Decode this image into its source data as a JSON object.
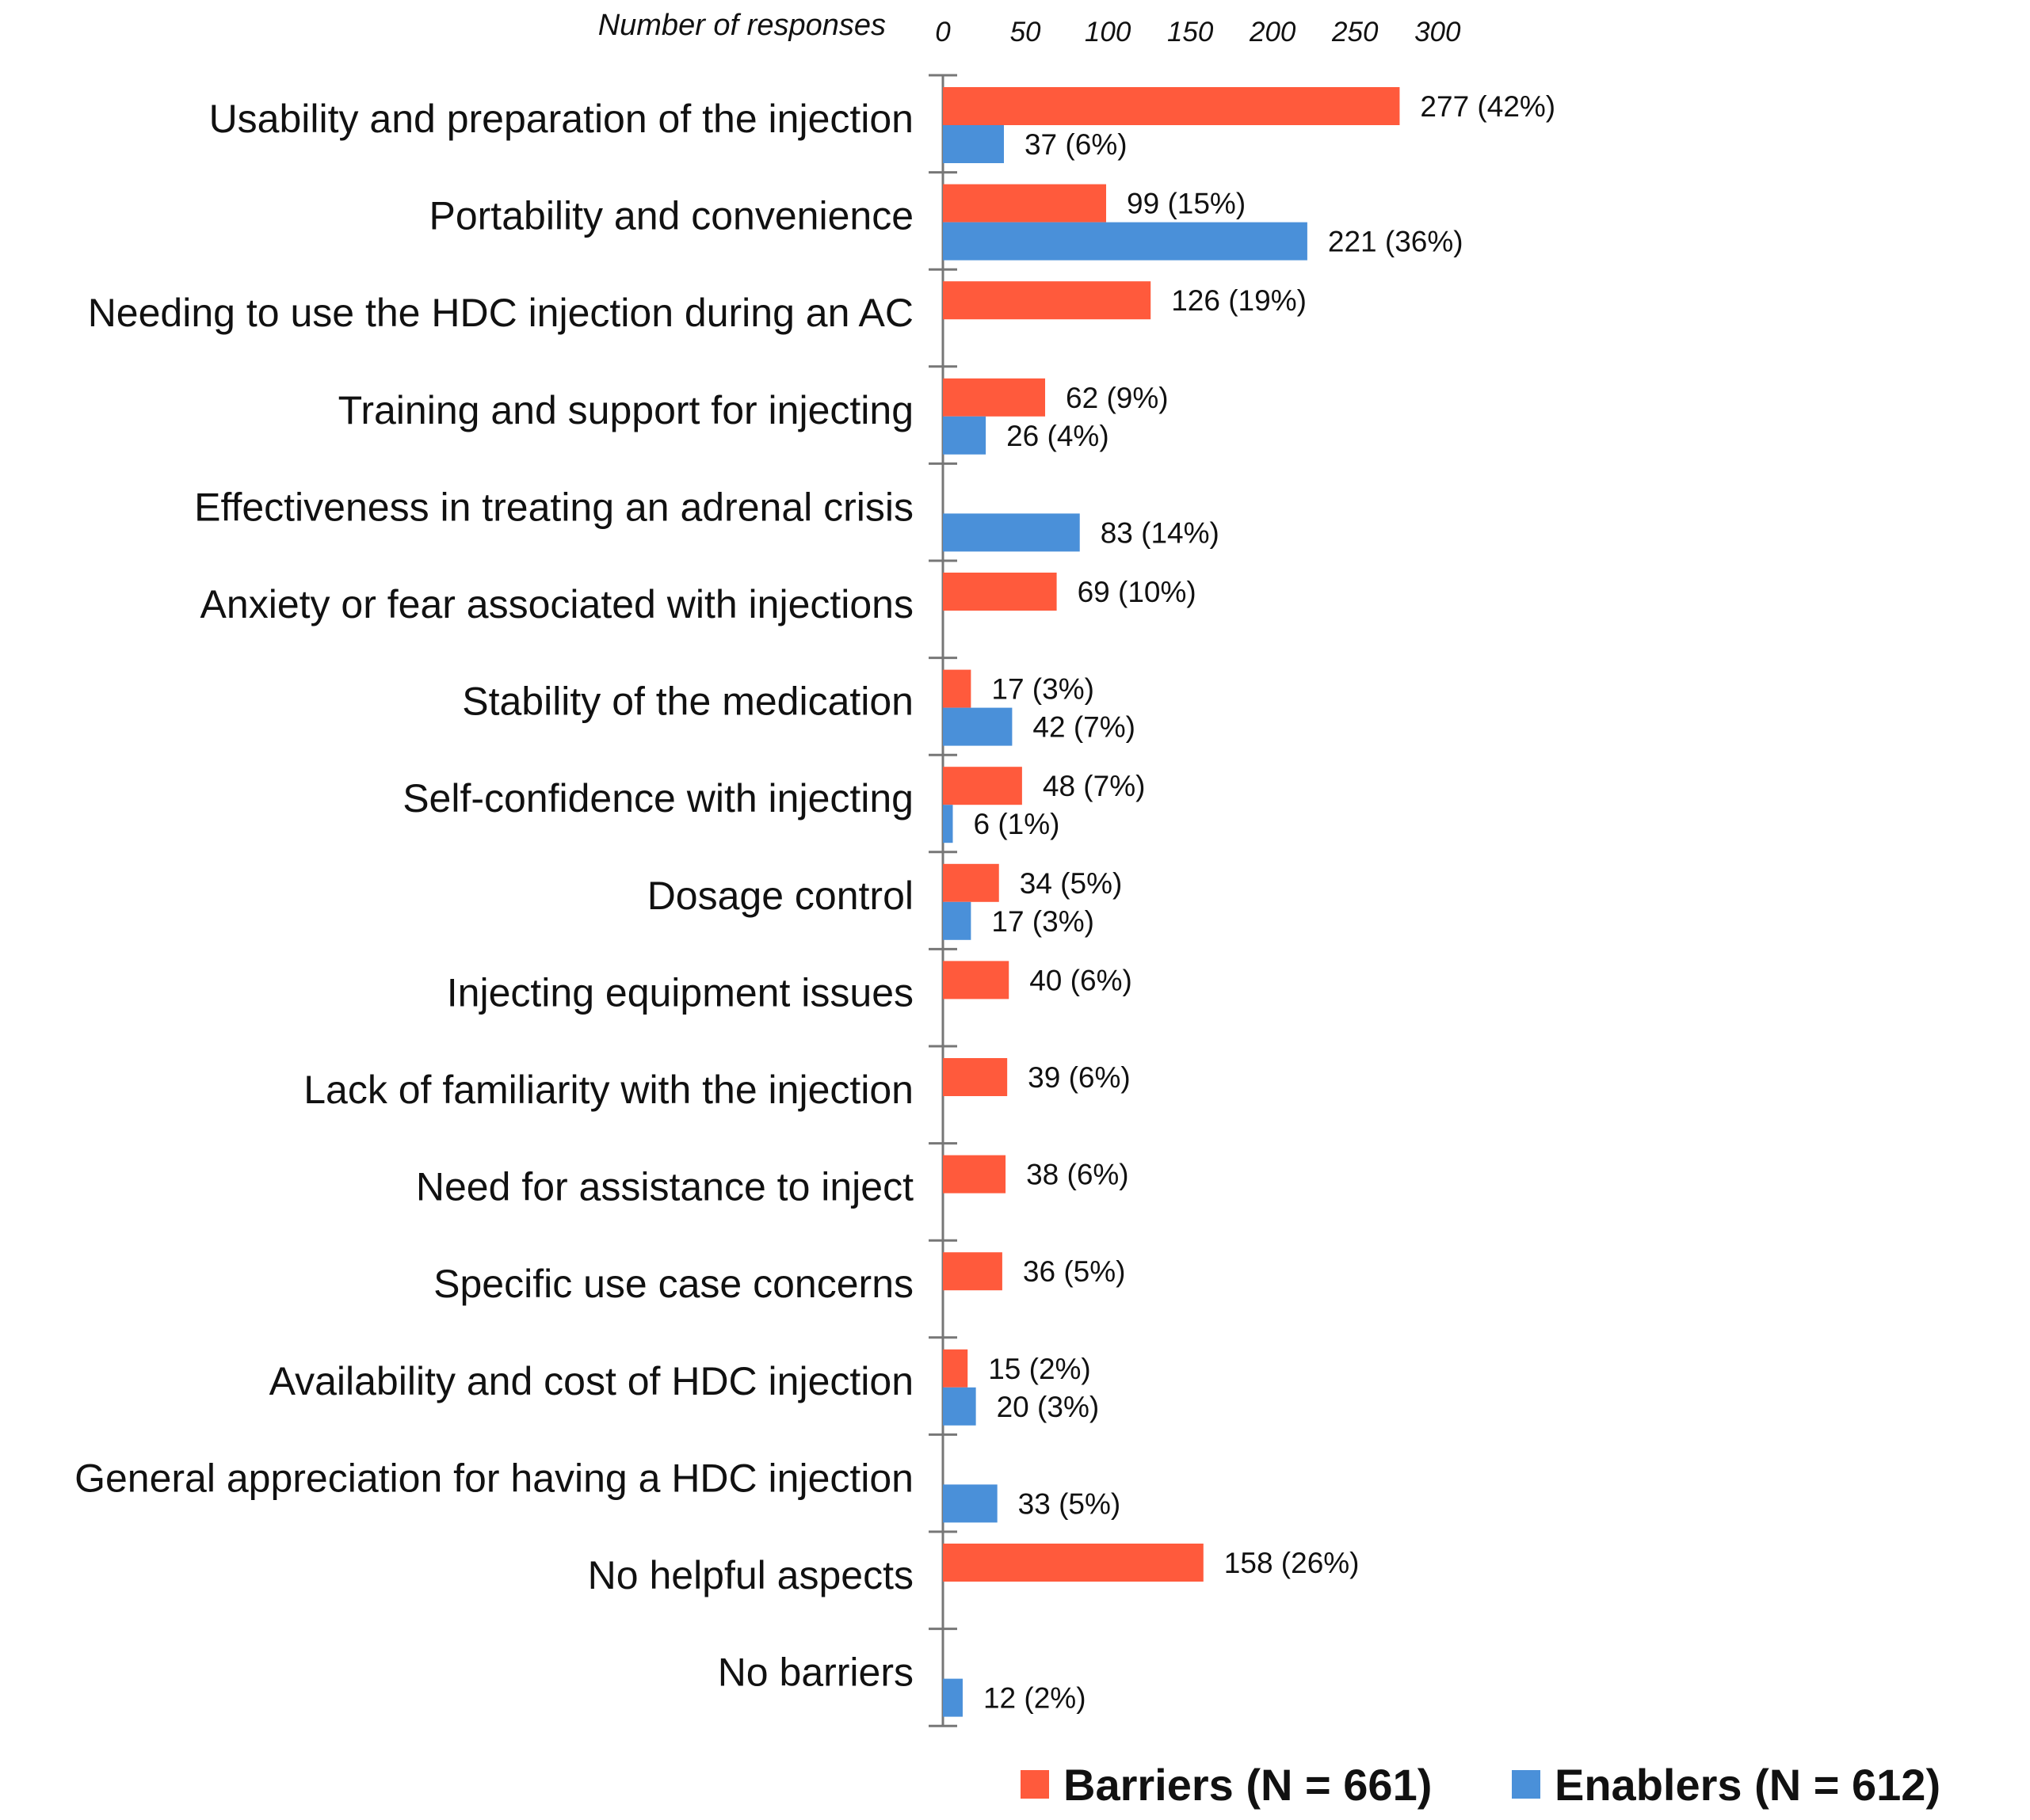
{
  "chart_data": {
    "type": "bar",
    "orientation": "horizontal",
    "xlabel": "Number of responses",
    "xlim": [
      0,
      300
    ],
    "ticks": [
      "0",
      "50",
      "100",
      "150",
      "200",
      "250",
      "300"
    ],
    "tick_values": [
      0,
      50,
      100,
      150,
      200,
      250,
      300
    ],
    "categories": [
      "Usability and preparation of the injection",
      "Portability and convenience",
      "Needing to use the HDC injection during an AC",
      "Training and support for injecting",
      "Effectiveness in treating an adrenal crisis",
      "Anxiety or fear associated with injections",
      "Stability of the medication",
      "Self-confidence with injecting",
      "Dosage control",
      "Injecting equipment issues",
      "Lack of familiarity with the injection",
      "Need for assistance to inject",
      "Specific use case concerns",
      "Availability and cost of HDC injection",
      "General appreciation for having a HDC injection",
      "No helpful aspects",
      "No barriers"
    ],
    "series": [
      {
        "name": "Barriers (N = 661)",
        "color": "#ff5a3c",
        "values": [
          277,
          99,
          126,
          62,
          null,
          69,
          17,
          48,
          34,
          40,
          39,
          38,
          36,
          15,
          null,
          158,
          null
        ],
        "labels": [
          "277 (42%)",
          "99 (15%)",
          "126 (19%)",
          "62 (9%)",
          null,
          "69 (10%)",
          "17 (3%)",
          "48 (7%)",
          "34 (5%)",
          "40 (6%)",
          "39 (6%)",
          "38 (6%)",
          "36 (5%)",
          "15 (2%)",
          null,
          "158 (26%)",
          null
        ]
      },
      {
        "name": "Enablers (N = 612)",
        "color": "#4a90d9",
        "values": [
          37,
          221,
          null,
          26,
          83,
          null,
          42,
          6,
          17,
          null,
          null,
          null,
          null,
          20,
          33,
          null,
          12
        ],
        "labels": [
          "37 (6%)",
          "221 (36%)",
          null,
          "26 (4%)",
          "83 (14%)",
          null,
          "42 (7%)",
          "6 (1%)",
          "17 (3%)",
          null,
          null,
          null,
          null,
          "20 (3%)",
          "33 (5%)",
          null,
          "12 (2%)"
        ]
      }
    ],
    "legend": "bottom-right"
  }
}
